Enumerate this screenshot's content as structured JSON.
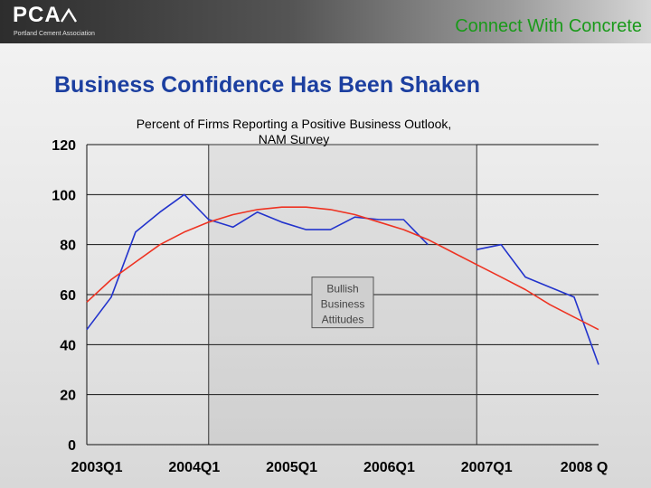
{
  "header": {
    "logo_text": "PCA",
    "logo_subtitle": "Portland Cement Association",
    "tagline": "Connect With Concrete"
  },
  "slide_title": "Business Confidence Has Been Shaken",
  "colors": {
    "series_line": "#2233cc",
    "trend_line": "#ee3322",
    "tagline": "#1a9a1a",
    "title": "#1c3fa0"
  },
  "chart_data": {
    "type": "line",
    "title": "Percent of Firms Reporting a Positive Business Outlook, NAM Survey",
    "ylim": [
      0,
      120
    ],
    "yticks": [
      0,
      20,
      40,
      60,
      80,
      100,
      120
    ],
    "xlim": [
      2003.0,
      2008.25
    ],
    "xticks": [
      {
        "value": 2003.0,
        "label": "2003Q1"
      },
      {
        "value": 2004.0,
        "label": "2004Q1"
      },
      {
        "value": 2005.0,
        "label": "2005Q1"
      },
      {
        "value": 2006.0,
        "label": "2006Q1"
      },
      {
        "value": 2007.0,
        "label": "2007Q1"
      },
      {
        "value": 2008.0,
        "label": "2008 Q"
      }
    ],
    "grid": true,
    "annotation": {
      "text": "Bullish Business Attitudes",
      "x_range": [
        2004.25,
        2007.0
      ]
    },
    "series": [
      {
        "x": [
          2003.0,
          2003.25,
          2003.5,
          2003.75,
          2004.0,
          2004.25,
          2004.5,
          2004.75,
          2005.0,
          2005.25,
          2005.5,
          2005.75,
          2006.0,
          2006.25,
          2006.5,
          2006.75
        ],
        "values": [
          46,
          59,
          85,
          93,
          100,
          90,
          87,
          93,
          89,
          86,
          86,
          91,
          90,
          90,
          80,
          null
        ]
      },
      {
        "x": [
          2007.0,
          2007.25,
          2007.5,
          2007.75,
          2008.0,
          2008.25
        ],
        "values": [
          78,
          80,
          67,
          63,
          59,
          32
        ]
      },
      {
        "x": [
          2003.0,
          2003.25,
          2003.5,
          2003.75,
          2004.0,
          2004.25,
          2004.5,
          2004.75,
          2005.0,
          2005.25,
          2005.5,
          2005.75,
          2006.0,
          2006.25,
          2006.5,
          2006.75,
          2007.0,
          2007.25,
          2007.5,
          2007.75,
          2008.0,
          2008.25
        ],
        "values": [
          57,
          66,
          73,
          80,
          85,
          89,
          92,
          94,
          95,
          95,
          94,
          92,
          89,
          86,
          82,
          77,
          72,
          67,
          62,
          56,
          51,
          46
        ]
      }
    ]
  }
}
